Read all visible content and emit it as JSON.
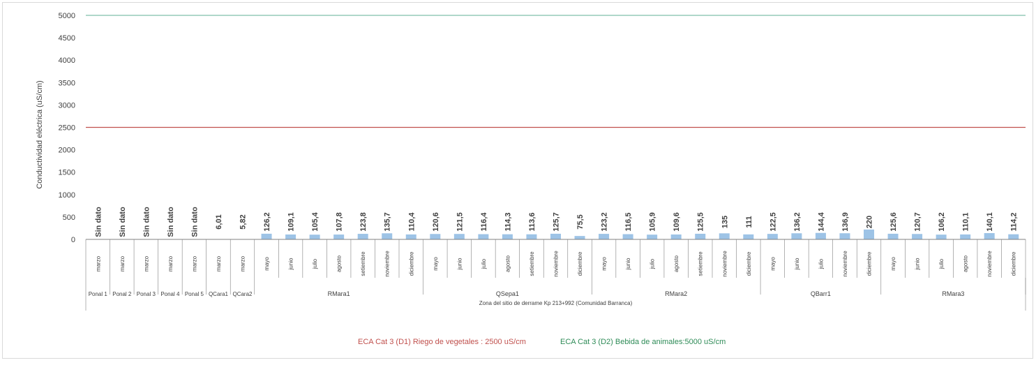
{
  "chart_data": {
    "type": "bar",
    "ylabel": "Conductividad eléctrica (uS/cm)",
    "ylim": [
      0,
      5000
    ],
    "yticks": [
      0,
      500,
      1000,
      1500,
      2000,
      2500,
      3000,
      3500,
      4000,
      4500,
      5000
    ],
    "grid": false,
    "legend_position": "bottom",
    "colors": {
      "bar": "#9dc3e6",
      "line_d1": "#c0504d",
      "line_d2": "#7fbfaa",
      "axis": "#808080",
      "text": "#404040"
    },
    "zone_label": "Zona del sitio de derrame Kp 213+992 (Comunidad Barranca)",
    "groups": [
      {
        "name": "Ponal 1",
        "count": 1
      },
      {
        "name": "Ponal 2",
        "count": 1
      },
      {
        "name": "Ponal 3",
        "count": 1
      },
      {
        "name": "Ponal 4",
        "count": 1
      },
      {
        "name": "Ponal 5",
        "count": 1
      },
      {
        "name": "QCara1",
        "count": 1
      },
      {
        "name": "QCara2",
        "count": 1
      },
      {
        "name": "RMara1",
        "count": 7
      },
      {
        "name": "QSepa1",
        "count": 7
      },
      {
        "name": "RMara2",
        "count": 7
      },
      {
        "name": "QBarr1",
        "count": 5
      },
      {
        "name": "RMara3",
        "count": 6
      }
    ],
    "categories": [
      "marzo",
      "marzo",
      "marzo",
      "marzo",
      "marzo",
      "marzo",
      "marzo",
      "mayo",
      "junio",
      "julio",
      "agosto",
      "setiembre",
      "noviembre",
      "diciembre",
      "mayo",
      "junio",
      "julio",
      "agosto",
      "setiembre",
      "noviembre",
      "diciembre",
      "mayo",
      "junio",
      "julio",
      "agosto",
      "setiembre",
      "noviembre",
      "diciembre",
      "mayo",
      "junio",
      "julio",
      "noviembre",
      "diciembre",
      "mayo",
      "junio",
      "julio",
      "agosto",
      "noviembre",
      "diciembre"
    ],
    "values": [
      null,
      null,
      null,
      null,
      null,
      6.01,
      5.82,
      126.2,
      109.1,
      105.4,
      107.8,
      123.8,
      135.7,
      110.4,
      120.6,
      121.5,
      116.4,
      114.3,
      113.6,
      125.7,
      75.5,
      123.2,
      116.5,
      105.9,
      109.6,
      125.5,
      135,
      111,
      122.5,
      136.2,
      144.4,
      136.9,
      220,
      125.6,
      120.7,
      106.2,
      110.1,
      140.1,
      114.2
    ],
    "data_labels": [
      "Sin dato",
      "Sin dato",
      "Sin dato",
      "Sin dato",
      "Sin dato",
      "6,01",
      "5,82",
      "126,2",
      "109,1",
      "105,4",
      "107,8",
      "123,8",
      "135,7",
      "110,4",
      "120,6",
      "121,5",
      "116,4",
      "114,3",
      "113,6",
      "125,7",
      "75,5",
      "123,2",
      "116,5",
      "105,9",
      "109,6",
      "125,5",
      "135",
      "111",
      "122,5",
      "136,2",
      "144,4",
      "136,9",
      "220",
      "125,6",
      "120,7",
      "106,2",
      "110,1",
      "140,1",
      "114,2"
    ],
    "reference_lines": [
      {
        "value": 2500,
        "label": "ECA Cat 3 (D1) Riego de vegetales : 2500 uS/cm",
        "color": "#c0504d"
      },
      {
        "value": 5000,
        "label": "ECA Cat 3 (D2) Bebida de animales:5000 uS/cm",
        "color": "#7fbfaa"
      }
    ]
  }
}
